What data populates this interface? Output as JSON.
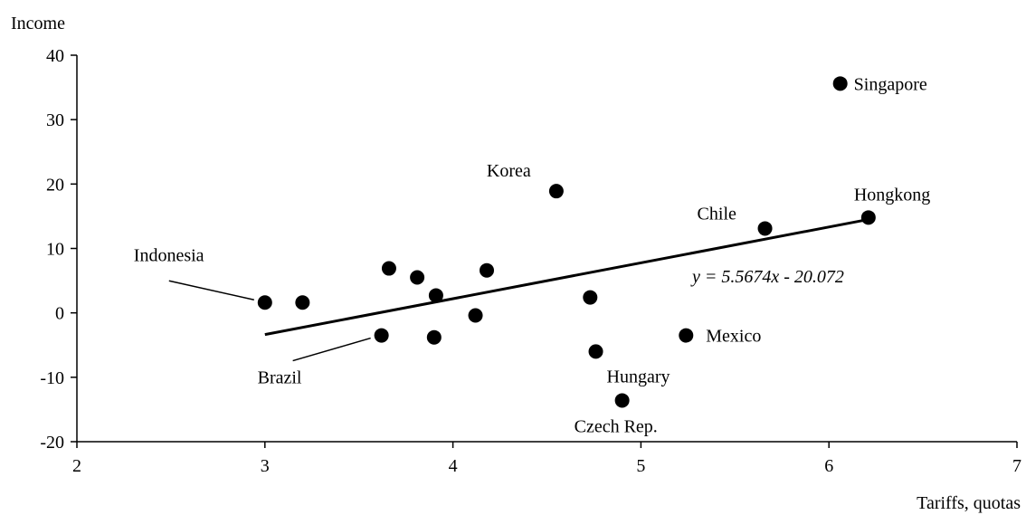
{
  "chart_data": {
    "type": "scatter",
    "xlabel": "Tariffs, quotas",
    "ylabel": "Income",
    "xlim": [
      2,
      7
    ],
    "ylim": [
      -20,
      40
    ],
    "xticks": [
      2,
      3,
      4,
      5,
      6,
      7
    ],
    "yticks": [
      -20,
      -10,
      0,
      10,
      20,
      30,
      40
    ],
    "grid": false,
    "legend": "none",
    "points": [
      {
        "label": "Indonesia",
        "x": 3.0,
        "y": 1.6
      },
      {
        "label": "",
        "x": 3.2,
        "y": 1.6
      },
      {
        "label": "Brazil",
        "x": 3.62,
        "y": -3.5
      },
      {
        "label": "",
        "x": 3.66,
        "y": 6.9
      },
      {
        "label": "",
        "x": 3.81,
        "y": 5.5
      },
      {
        "label": "",
        "x": 3.9,
        "y": -3.8
      },
      {
        "label": "",
        "x": 3.91,
        "y": 2.7
      },
      {
        "label": "",
        "x": 4.12,
        "y": -0.4
      },
      {
        "label": "",
        "x": 4.18,
        "y": 6.6
      },
      {
        "label": "Korea",
        "x": 4.55,
        "y": 18.9
      },
      {
        "label": "",
        "x": 4.73,
        "y": 2.4
      },
      {
        "label": "Hungary",
        "x": 4.76,
        "y": -6.0
      },
      {
        "label": "Czech Rep.",
        "x": 4.9,
        "y": -13.6
      },
      {
        "label": "Mexico",
        "x": 5.24,
        "y": -3.5
      },
      {
        "label": "Chile",
        "x": 5.66,
        "y": 13.1
      },
      {
        "label": "Singapore",
        "x": 6.06,
        "y": 35.6
      },
      {
        "label": "Hongkong",
        "x": 6.21,
        "y": 14.8
      }
    ],
    "trendline": {
      "slope": 5.5674,
      "intercept": -20.072,
      "x_range": [
        3.0,
        6.21
      ],
      "equation": "y = 5.5674x - 20.072"
    }
  }
}
